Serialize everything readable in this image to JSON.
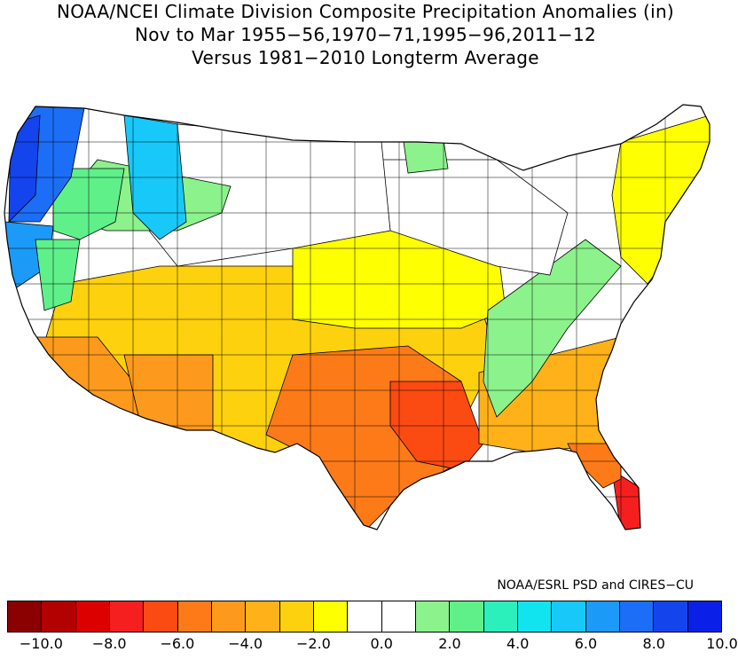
{
  "title": {
    "line1": "NOAA/NCEI Climate Division Composite Precipitation Anomalies (in)",
    "line2": "Nov to Mar  1955−56,1970−71,1995−96,2011−12",
    "line3": "Versus 1981−2010 Longterm Average"
  },
  "credit": "NOAA/ESRL PSD and CIRES−CU",
  "legend": {
    "colors": [
      "#8b0000",
      "#b30000",
      "#dd0000",
      "#f61f1f",
      "#fb4a12",
      "#fc7a18",
      "#fd9a1e",
      "#feb118",
      "#fdd10e",
      "#feff00",
      "#ffffff",
      "#ffffff",
      "#8cf28c",
      "#5ff08a",
      "#2bf0bb",
      "#12e4ef",
      "#18c8f8",
      "#1b9af8",
      "#1c6ef6",
      "#1444ec",
      "#0a20e6"
    ],
    "tick_labels": [
      "−10.0",
      "−8.0",
      "−6.0",
      "−4.0",
      "−2.0",
      "0.0",
      "2.0",
      "4.0",
      "6.0",
      "8.0",
      "10.0"
    ]
  },
  "map_regions": [
    {
      "region": "pacific-northwest-coast",
      "color": "#1444ec"
    },
    {
      "region": "western-washington-interior",
      "color": "#1c6ef6"
    },
    {
      "region": "northern-california-coast",
      "color": "#1b9af8"
    },
    {
      "region": "northern-idaho-panhandle",
      "color": "#18c8f8"
    },
    {
      "region": "eastern-washington-oregon",
      "color": "#5ff08a"
    },
    {
      "region": "northern-rockies-montana",
      "color": "#8cf28c"
    },
    {
      "region": "great-plains-north",
      "color": "#ffffff"
    },
    {
      "region": "great-plains-central",
      "color": "#feff00"
    },
    {
      "region": "southwest",
      "color": "#fdd10e"
    },
    {
      "region": "southern-california",
      "color": "#fd9a1e"
    },
    {
      "region": "texas",
      "color": "#fc7a18"
    },
    {
      "region": "lower-mississippi",
      "color": "#fb4a12"
    },
    {
      "region": "ohio-tennessee-valley",
      "color": "#8cf28c"
    },
    {
      "region": "southeast",
      "color": "#feb118"
    },
    {
      "region": "florida-south",
      "color": "#f61f1f"
    },
    {
      "region": "northeast",
      "color": "#feff00"
    },
    {
      "region": "great-lakes",
      "color": "#ffffff"
    },
    {
      "region": "minnesota-arrowhead",
      "color": "#8cf28c"
    }
  ]
}
